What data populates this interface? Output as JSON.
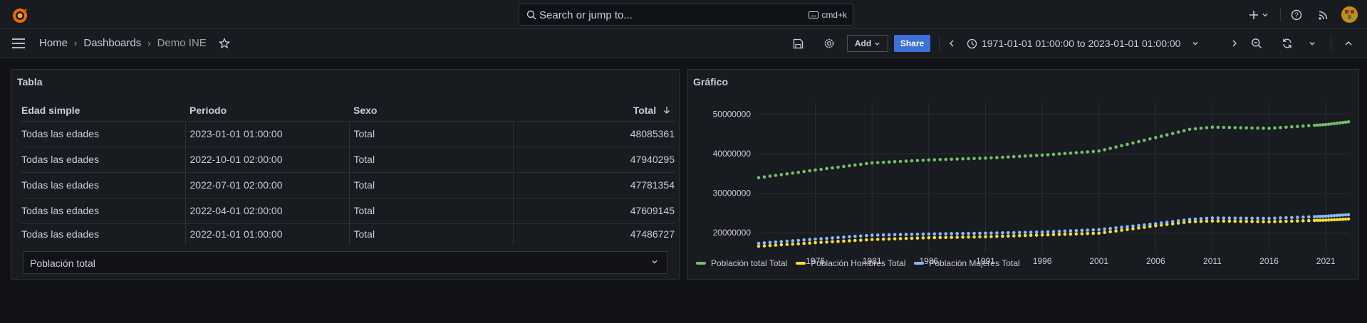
{
  "topbar": {
    "search_placeholder": "Search or jump to...",
    "shortcut": "cmd+k"
  },
  "breadcrumb": {
    "home": "Home",
    "dashboards": "Dashboards",
    "current": "Demo INE"
  },
  "toolbar": {
    "add_label": "Add",
    "share_label": "Share",
    "time_range": "1971-01-01 01:00:00 to 2023-01-01 01:00:00"
  },
  "table_panel": {
    "title": "Tabla",
    "columns": [
      "Edad simple",
      "Periodo",
      "Sexo",
      "Total"
    ],
    "rows": [
      [
        "Todas las edades",
        "2023-01-01 01:00:00",
        "Total",
        "48085361"
      ],
      [
        "Todas las edades",
        "2022-10-01 02:00:00",
        "Total",
        "47940295"
      ],
      [
        "Todas las edades",
        "2022-07-01 02:00:00",
        "Total",
        "47781354"
      ],
      [
        "Todas las edades",
        "2022-04-01 02:00:00",
        "Total",
        "47609145"
      ],
      [
        "Todas las edades",
        "2022-01-01 01:00:00",
        "Total",
        "47486727"
      ]
    ],
    "footer_select": "Población total"
  },
  "chart_panel": {
    "title": "Gráfico"
  },
  "chart_data": {
    "type": "scatter",
    "title": "",
    "xlabel": "",
    "ylabel": "",
    "x_ticks": [
      "1976",
      "1981",
      "1986",
      "1991",
      "1996",
      "2001",
      "2006",
      "2011",
      "2016",
      "2021"
    ],
    "y_ticks": [
      "20000000",
      "30000000",
      "40000000",
      "50000000"
    ],
    "xlim": [
      1971,
      2023
    ],
    "ylim": [
      15000000,
      53000000
    ],
    "grid": true,
    "legend_position": "bottom-left",
    "series": [
      {
        "name": "Población total Total",
        "color": "#73bf69",
        "points": [
          [
            1971,
            33950000
          ],
          [
            1976,
            35900000
          ],
          [
            1981,
            37700000
          ],
          [
            1986,
            38450000
          ],
          [
            1991,
            38900000
          ],
          [
            1996,
            39650000
          ],
          [
            2001,
            40700000
          ],
          [
            2006,
            44100000
          ],
          [
            2009,
            46200000
          ],
          [
            2011,
            46750000
          ],
          [
            2016,
            46450000
          ],
          [
            2021,
            47400000
          ],
          [
            2023,
            48085361
          ]
        ]
      },
      {
        "name": "Población Hombres Total",
        "color": "#fade2a",
        "points": [
          [
            1971,
            16600000
          ],
          [
            1976,
            17500000
          ],
          [
            1981,
            18300000
          ],
          [
            1986,
            18750000
          ],
          [
            1991,
            19000000
          ],
          [
            1996,
            19450000
          ],
          [
            2001,
            19900000
          ],
          [
            2006,
            21800000
          ],
          [
            2009,
            22800000
          ],
          [
            2011,
            23000000
          ],
          [
            2016,
            22800000
          ],
          [
            2021,
            23200000
          ],
          [
            2023,
            23500000
          ]
        ]
      },
      {
        "name": "Población Mujeres Total",
        "color": "#8ab8ff",
        "points": [
          [
            1971,
            17350000
          ],
          [
            1976,
            18400000
          ],
          [
            1981,
            19400000
          ],
          [
            1986,
            19700000
          ],
          [
            1991,
            19900000
          ],
          [
            1996,
            20200000
          ],
          [
            2001,
            20800000
          ],
          [
            2006,
            22300000
          ],
          [
            2009,
            23400000
          ],
          [
            2011,
            23750000
          ],
          [
            2016,
            23650000
          ],
          [
            2021,
            24200000
          ],
          [
            2023,
            24600000
          ]
        ]
      }
    ]
  }
}
